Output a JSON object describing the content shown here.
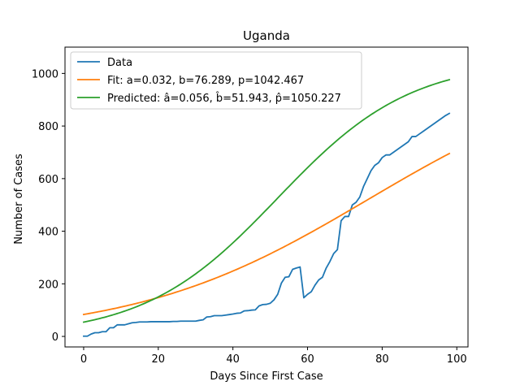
{
  "chart_data": {
    "type": "line",
    "title": "Uganda",
    "xlabel": "Days Since First Case",
    "ylabel": "Number of Cases",
    "xlim": [
      -5,
      103
    ],
    "ylim": [
      -40,
      1100
    ],
    "x_ticks": [
      0,
      20,
      40,
      60,
      80,
      100
    ],
    "y_ticks": [
      0,
      200,
      400,
      600,
      800,
      1000
    ],
    "grid": false,
    "legend_position": "top-left",
    "series": [
      {
        "name": "Data",
        "color": "#1f77b4",
        "x": [
          0,
          1,
          2,
          3,
          4,
          5,
          6,
          7,
          8,
          9,
          10,
          11,
          12,
          13,
          14,
          15,
          16,
          17,
          18,
          19,
          20,
          21,
          22,
          23,
          24,
          25,
          26,
          27,
          28,
          29,
          30,
          31,
          32,
          33,
          34,
          35,
          36,
          37,
          38,
          39,
          40,
          41,
          42,
          43,
          44,
          45,
          46,
          47,
          48,
          49,
          50,
          51,
          52,
          53,
          54,
          55,
          56,
          57,
          58,
          59,
          60,
          61,
          62,
          63,
          64,
          65,
          66,
          67,
          68,
          69,
          70,
          71,
          72,
          73,
          74,
          75,
          76,
          77,
          78,
          79,
          80,
          81,
          82,
          83,
          84,
          85,
          86,
          87,
          88,
          89,
          90,
          91,
          92,
          93,
          94,
          95,
          96,
          97,
          98
        ],
        "y": [
          1,
          1,
          9,
          14,
          14,
          18,
          18,
          33,
          33,
          44,
          44,
          44,
          48,
          52,
          53,
          55,
          55,
          55,
          56,
          56,
          56,
          56,
          56,
          56,
          57,
          57,
          58,
          58,
          58,
          58,
          58,
          61,
          63,
          74,
          75,
          79,
          79,
          79,
          81,
          83,
          85,
          88,
          89,
          97,
          98,
          100,
          101,
          116,
          121,
          122,
          126,
          139,
          160,
          203,
          225,
          227,
          255,
          260,
          264,
          147,
          160,
          170,
          195,
          215,
          225,
          260,
          285,
          315,
          330,
          440,
          456,
          456,
          500,
          510,
          530,
          570,
          600,
          630,
          650,
          660,
          680,
          690,
          690,
          700,
          710,
          720,
          730,
          740,
          760,
          760,
          770,
          780,
          790,
          800,
          810,
          820,
          830,
          840,
          848
        ]
      },
      {
        "name": "Fit: a=0.032, b=76.289, p=1042.467",
        "color": "#ff7f0e",
        "model": {
          "a": 0.032,
          "b": 76.289,
          "p": 1042.467
        },
        "x_range": [
          0,
          98
        ]
      },
      {
        "name": "Predicted: â=0.056, b̂=51.943, p̂=1050.227",
        "color": "#2ca02c",
        "model": {
          "a": 0.056,
          "b": 51.943,
          "p": 1050.227
        },
        "x_range": [
          0,
          98
        ]
      }
    ]
  }
}
